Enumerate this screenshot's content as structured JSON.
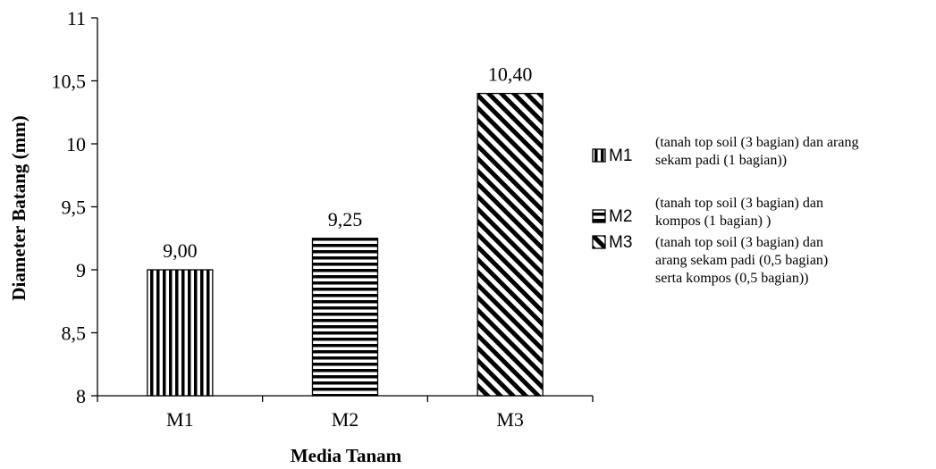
{
  "chart_data": {
    "type": "bar",
    "categories": [
      "M1",
      "M2",
      "M3"
    ],
    "values": [
      9.0,
      9.25,
      10.4
    ],
    "data_labels": [
      "9,00",
      "9,25",
      "10,40"
    ],
    "xlabel": "Media Tanam",
    "ylabel": "Diameter Batang (mm)",
    "ylim": [
      8,
      11
    ],
    "yticks": [
      8,
      8.5,
      9,
      9.5,
      10,
      10.5,
      11
    ],
    "ytick_labels": [
      "8",
      "8,5",
      "9",
      "9,5",
      "10",
      "10,5",
      "11"
    ],
    "grid": false,
    "legend_position": "right",
    "legend": [
      {
        "code": "M1",
        "pattern": "vertical-lines",
        "lines": [
          "(tanah top soil  (3 bagian) dan arang",
          "sekam padi (1 bagian))"
        ]
      },
      {
        "code": "M2",
        "pattern": "horizontal-lines",
        "lines": [
          "(tanah top soil (3 bagian) dan",
          "kompos (1 bagian) )"
        ]
      },
      {
        "code": "M3",
        "pattern": "diagonal-lines",
        "lines": [
          "(tanah top soil (3 bagian) dan",
          "arang sekam padi (0,5 bagian)",
          "serta kompos  (0,5 bagian))"
        ]
      }
    ],
    "bar_fill_color": "#ffffff",
    "bar_line_color": "#000000"
  }
}
